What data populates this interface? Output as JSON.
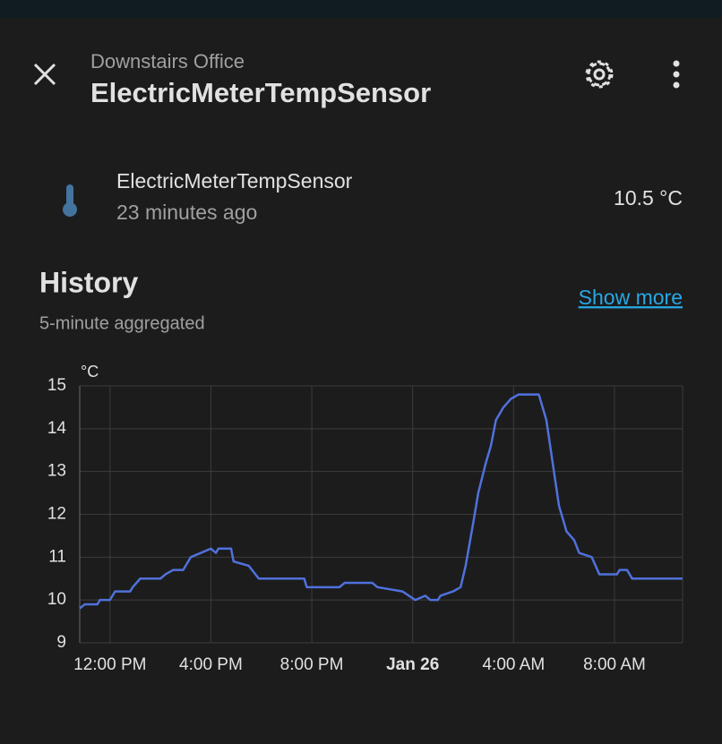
{
  "header": {
    "subtitle": "Downstairs Office",
    "title": "ElectricMeterTempSensor"
  },
  "entity": {
    "name": "ElectricMeterTempSensor",
    "last_changed": "23 minutes ago",
    "state": "10.5 °C"
  },
  "history": {
    "title": "History",
    "subtitle": "5-minute aggregated",
    "show_more": "Show more"
  },
  "chart_data": {
    "type": "line",
    "y_unit": "°C",
    "color": "#5071dc",
    "grid": true,
    "x": [
      10.8,
      11.0,
      11.5,
      11.6,
      12.0,
      12.2,
      12.8,
      12.9,
      13.2,
      14.0,
      14.2,
      14.5,
      14.9,
      15.2,
      15.6,
      16.0,
      16.2,
      16.3,
      16.8,
      16.9,
      17.5,
      17.9,
      19.7,
      19.8,
      21.1,
      21.3,
      22.4,
      22.6,
      23.6,
      24.1,
      24.5,
      24.7,
      25.0,
      25.1,
      25.6,
      25.9,
      26.1,
      26.4,
      26.6,
      26.9,
      27.1,
      27.3,
      27.6,
      27.9,
      28.2,
      29.0,
      29.3,
      29.6,
      29.8,
      30.1,
      30.4,
      30.6,
      31.1,
      31.4,
      32.1,
      32.2,
      32.5,
      32.7,
      34.3,
      34.7
    ],
    "values": [
      9.8,
      9.9,
      9.9,
      10.0,
      10.0,
      10.2,
      10.2,
      10.3,
      10.5,
      10.5,
      10.6,
      10.7,
      10.7,
      11.0,
      11.1,
      11.2,
      11.1,
      11.2,
      11.2,
      10.9,
      10.8,
      10.5,
      10.5,
      10.3,
      10.3,
      10.4,
      10.4,
      10.3,
      10.2,
      10.0,
      10.1,
      10.0,
      10.0,
      10.1,
      10.2,
      10.3,
      10.8,
      11.8,
      12.5,
      13.2,
      13.6,
      14.2,
      14.5,
      14.7,
      14.8,
      14.8,
      14.2,
      13.0,
      12.2,
      11.6,
      11.4,
      11.1,
      11.0,
      10.6,
      10.6,
      10.7,
      10.7,
      10.5,
      10.5,
      10.5
    ],
    "xlim": [
      10.8,
      34.7
    ],
    "xticks": [
      {
        "value": 12,
        "label": "12:00 PM"
      },
      {
        "value": 16,
        "label": "4:00 PM"
      },
      {
        "value": 20,
        "label": "8:00 PM"
      },
      {
        "value": 24,
        "label": "Jan 26",
        "bold": true
      },
      {
        "value": 28,
        "label": "4:00 AM"
      },
      {
        "value": 32,
        "label": "8:00 AM"
      }
    ],
    "ylim": [
      9,
      15
    ],
    "yticks": [
      9,
      10,
      11,
      12,
      13,
      14,
      15
    ]
  }
}
